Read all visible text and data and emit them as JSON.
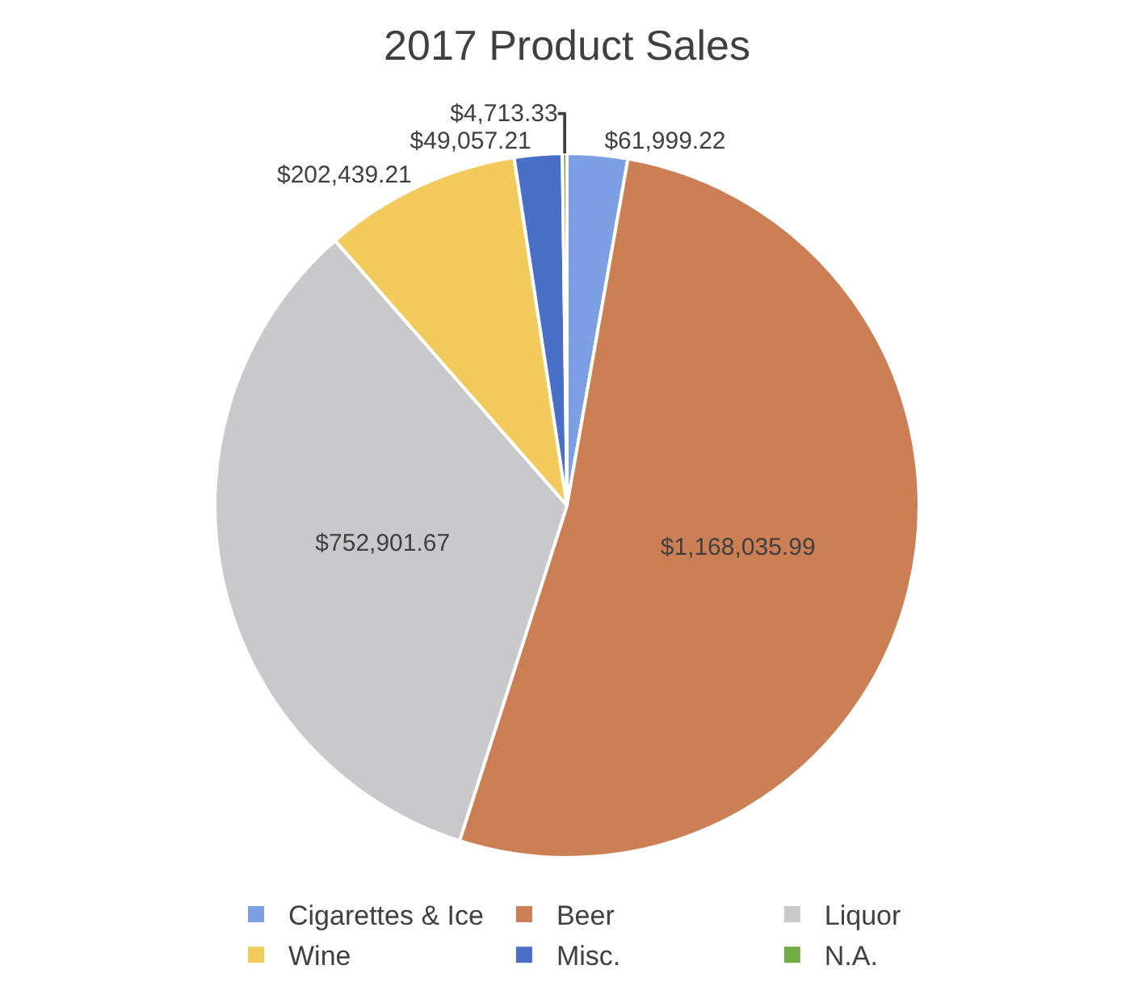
{
  "chart_data": {
    "type": "pie",
    "title": "2017 Product Sales",
    "categories": [
      "Cigarettes & Ice",
      "Beer",
      "Liquor",
      "Wine",
      "Misc.",
      "N.A."
    ],
    "values": [
      61999.22,
      1168035.99,
      752901.67,
      202439.21,
      49057.21,
      4713.33
    ],
    "value_labels": [
      "$61,999.22",
      "$1,168,035.99",
      "$752,901.67",
      "$202,439.21",
      "$49,057.21",
      "$4,713.33"
    ],
    "colors": [
      "#7d9fe3",
      "#cc7f55",
      "#c9c9cb",
      "#f2cb5c",
      "#4a6fc7",
      "#70ad47"
    ],
    "legend": "bottom"
  }
}
